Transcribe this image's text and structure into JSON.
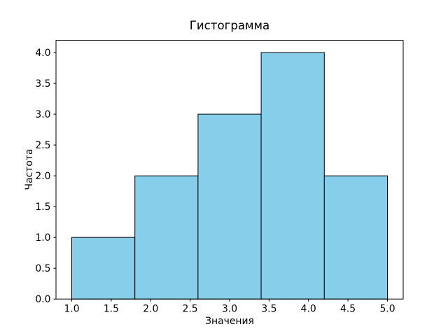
{
  "chart_data": {
    "type": "bar",
    "subtype": "histogram",
    "title": "Гистограмма",
    "xlabel": "Значения",
    "ylabel": "Частота",
    "bin_edges": [
      1.0,
      1.8,
      2.6,
      3.4,
      4.2,
      5.0
    ],
    "counts": [
      1,
      2,
      3,
      4,
      2
    ],
    "xticks": [
      1.0,
      1.5,
      2.0,
      2.5,
      3.0,
      3.5,
      4.0,
      4.5,
      5.0
    ],
    "yticks": [
      0.0,
      0.5,
      1.0,
      1.5,
      2.0,
      2.5,
      3.0,
      3.5,
      4.0
    ],
    "xlim": [
      0.8,
      5.2
    ],
    "ylim": [
      0,
      4.2
    ],
    "grid": false,
    "legend": null,
    "bar_color": "#87CEEB",
    "bar_edge_color": "#000000",
    "axis_color": "#000000",
    "background_color": "#FFFFFF"
  }
}
